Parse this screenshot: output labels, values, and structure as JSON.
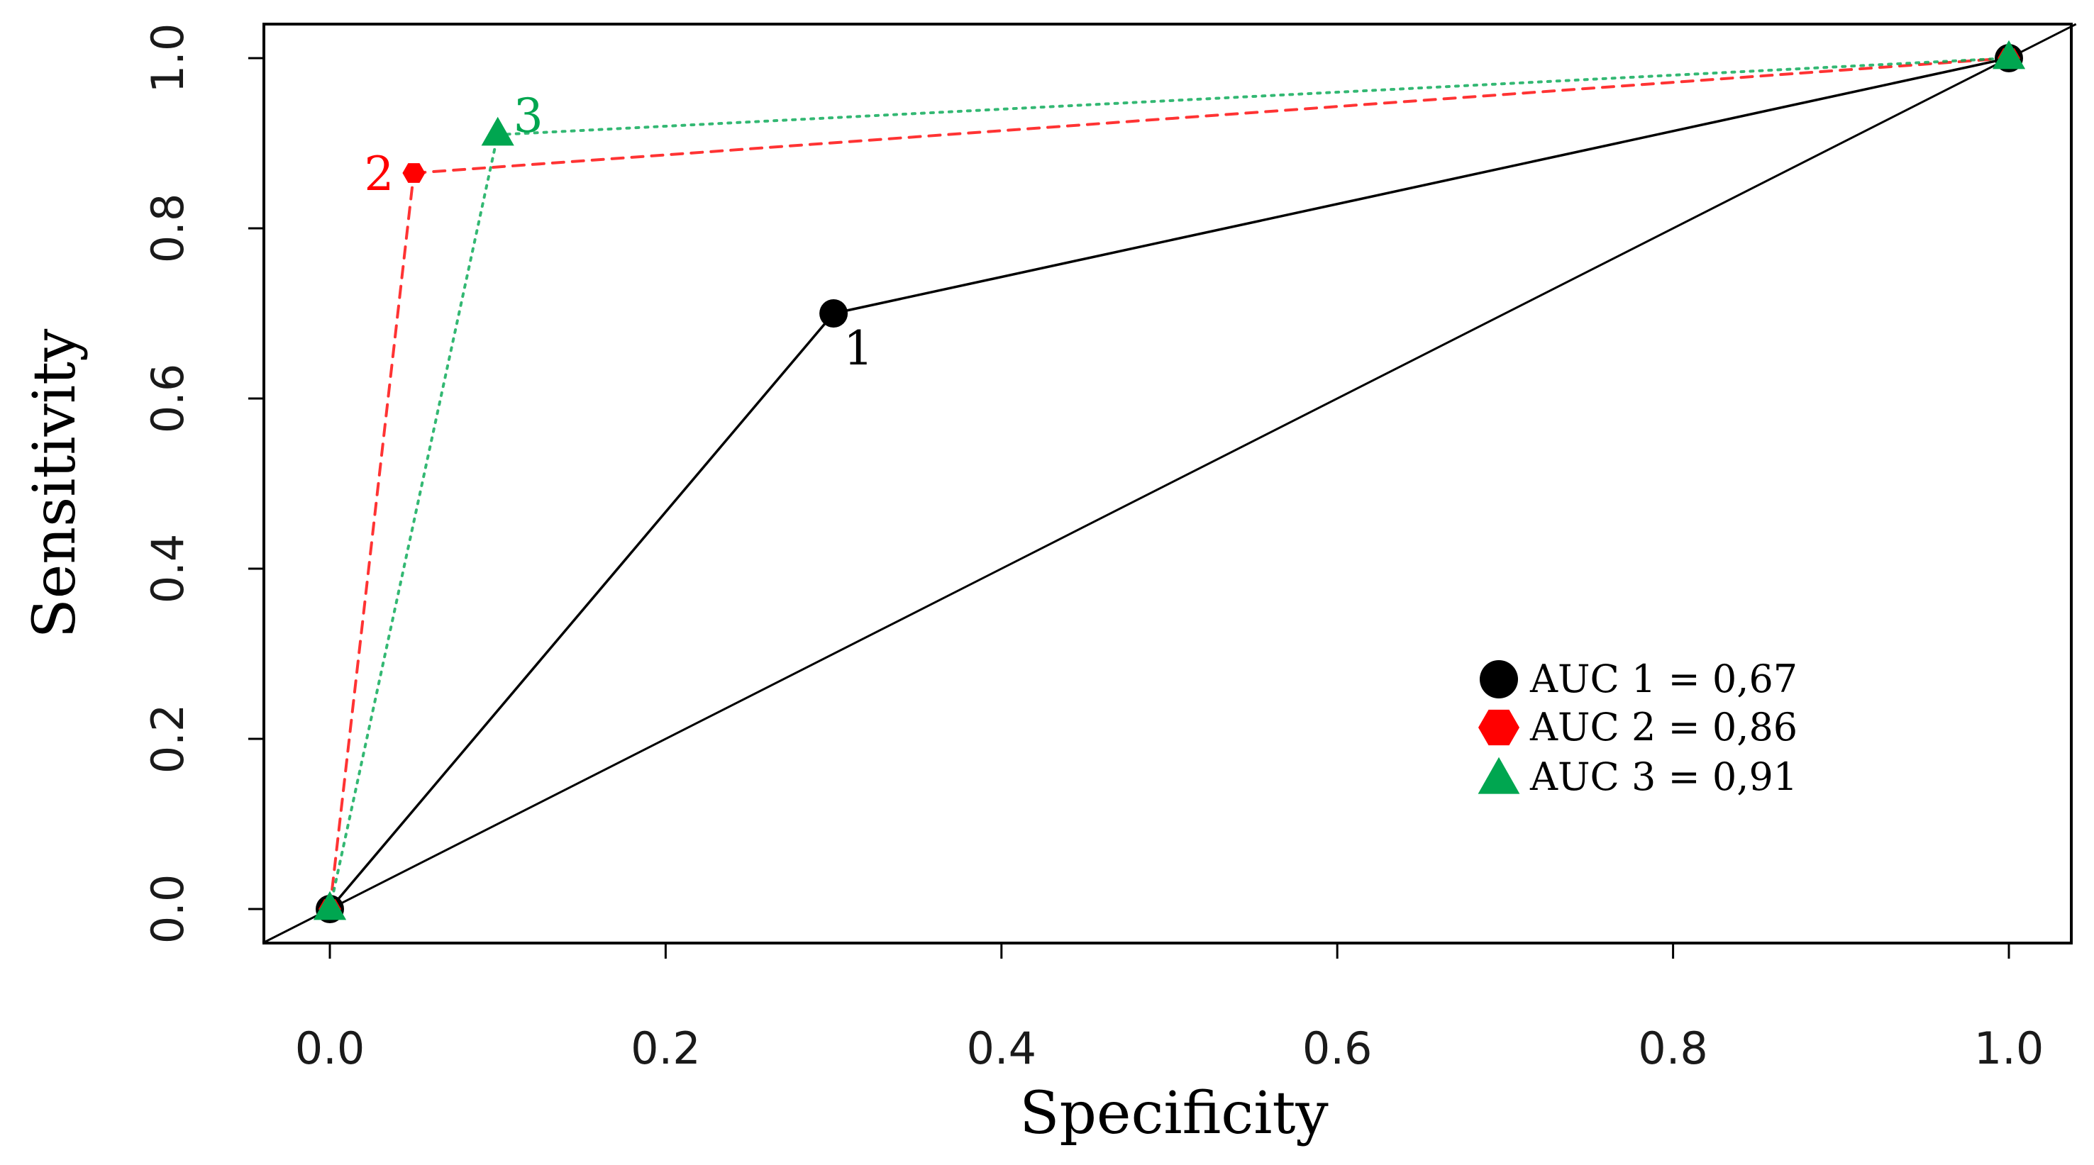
{
  "chart_data": {
    "type": "line",
    "title": "",
    "xlabel": "Specificity",
    "ylabel": "Sensitivity",
    "xlim": [
      -0.04,
      1.04
    ],
    "ylim": [
      -0.04,
      1.04
    ],
    "x_ticks": [
      0.0,
      0.2,
      0.4,
      0.6,
      0.8,
      1.0
    ],
    "y_ticks": [
      0.0,
      0.2,
      0.4,
      0.6,
      0.8,
      1.0
    ],
    "x_tick_labels": [
      "0.0",
      "0.2",
      "0.4",
      "0.6",
      "0.8",
      "1.0"
    ],
    "y_tick_labels": [
      "0.0",
      "0.2",
      "0.4",
      "0.6",
      "0.8",
      "1.0"
    ],
    "grid": false,
    "legend_position": "bottom-right",
    "reference_line": {
      "name": "diagonal",
      "x": [
        -0.04,
        1.04
      ],
      "y": [
        -0.04,
        1.04
      ],
      "color": "#000000"
    },
    "series": [
      {
        "name": "1",
        "legend": "AUC 1 = 0,67",
        "color": "#000000",
        "marker": "circle",
        "style": "solid",
        "x": [
          0.0,
          0.3,
          1.0
        ],
        "y": [
          0.0,
          0.7,
          1.0
        ],
        "labelled_point": {
          "x": 0.3,
          "y": 0.7,
          "text": "1"
        }
      },
      {
        "name": "2",
        "legend": "AUC 2 = 0,86",
        "color": "#ff0000",
        "marker": "hexagon",
        "style": "dashed",
        "x": [
          0.0,
          0.05,
          1.0
        ],
        "y": [
          0.0,
          0.865,
          1.0
        ],
        "labelled_point": {
          "x": 0.05,
          "y": 0.865,
          "text": "2"
        }
      },
      {
        "name": "3",
        "legend": "AUC 3 = 0,91",
        "color": "#00a650",
        "marker": "triangle",
        "style": "dotted",
        "x": [
          0.0,
          0.1,
          1.0
        ],
        "y": [
          0.0,
          0.91,
          1.0
        ],
        "labelled_point": {
          "x": 0.1,
          "y": 0.91,
          "text": "3"
        }
      }
    ]
  }
}
